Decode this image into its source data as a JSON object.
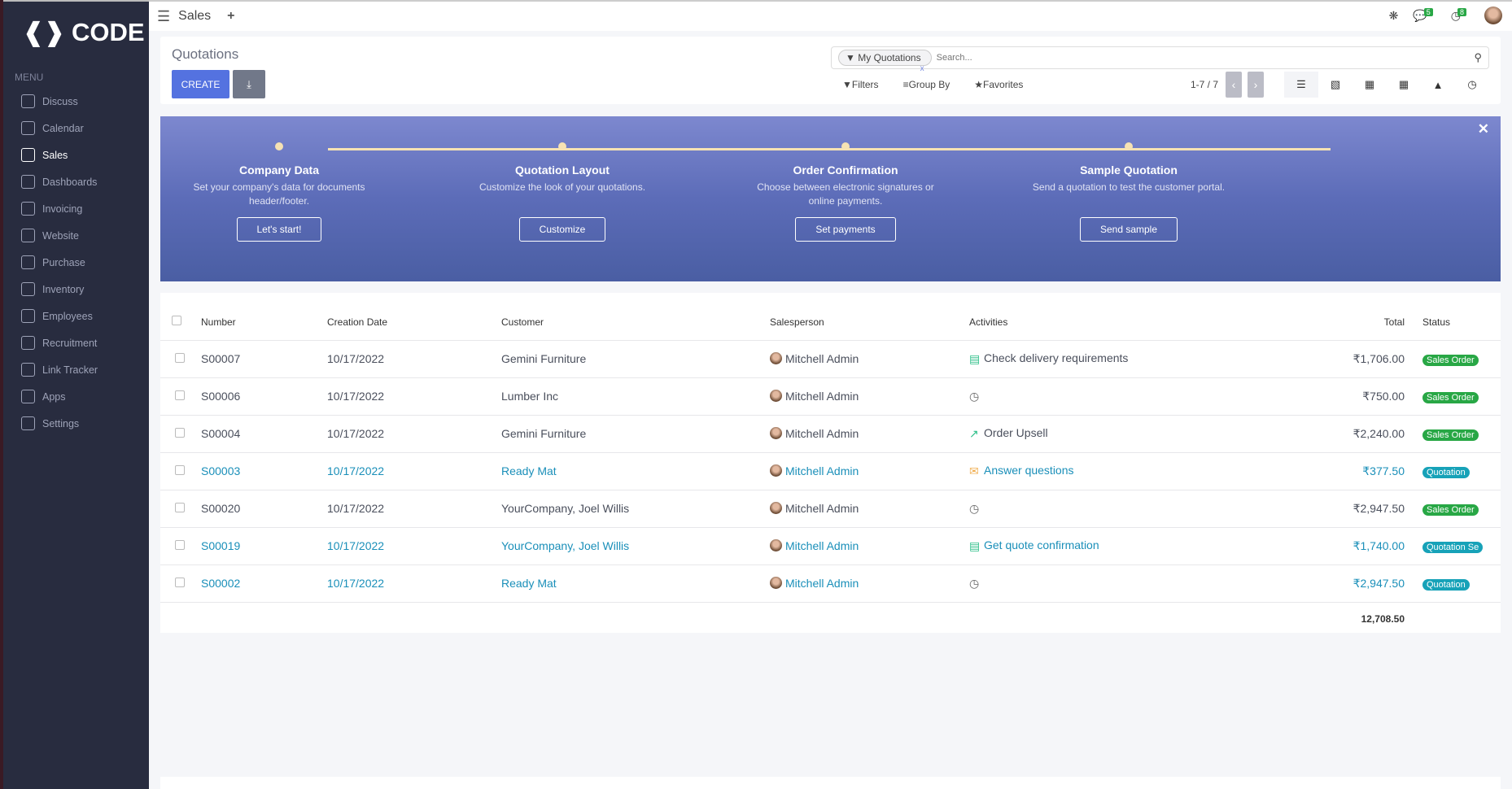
{
  "brand": {
    "logo_text": "CODE"
  },
  "sidebar": {
    "menu_label": "MENU",
    "items": [
      {
        "label": "Discuss",
        "icon": "chat-icon"
      },
      {
        "label": "Calendar",
        "icon": "app-icon"
      },
      {
        "label": "Sales",
        "icon": "chart-bars-icon",
        "active": true
      },
      {
        "label": "Dashboards",
        "icon": "gauge-icon"
      },
      {
        "label": "Invoicing",
        "icon": "invoice-icon"
      },
      {
        "label": "Website",
        "icon": "globe-icon"
      },
      {
        "label": "Purchase",
        "icon": "app-icon"
      },
      {
        "label": "Inventory",
        "icon": "box-icon"
      },
      {
        "label": "Employees",
        "icon": "app-icon"
      },
      {
        "label": "Recruitment",
        "icon": "app-icon"
      },
      {
        "label": "Link Tracker",
        "icon": "link-icon"
      },
      {
        "label": "Apps",
        "icon": "grid-icon"
      },
      {
        "label": "Settings",
        "icon": "gear-icon"
      }
    ]
  },
  "topbar": {
    "app_title": "Sales",
    "messages_count": "5",
    "activities_count": "8"
  },
  "control_panel": {
    "title": "Quotations",
    "create_label": "CREATE",
    "facet": "My Quotations",
    "search_placeholder": "Search...",
    "filters_label": "Filters",
    "group_by_label": "Group By",
    "favorites_label": "Favorites",
    "pager": "1-7 / 7"
  },
  "banner": {
    "steps": [
      {
        "title": "Company Data",
        "desc": "Set your company's data for documents header/footer.",
        "button": "Let's start!"
      },
      {
        "title": "Quotation Layout",
        "desc": "Customize the look of your quotations.",
        "button": "Customize"
      },
      {
        "title": "Order Confirmation",
        "desc": "Choose between electronic signatures or online payments.",
        "button": "Set payments"
      },
      {
        "title": "Sample Quotation",
        "desc": "Send a quotation to test the customer portal.",
        "button": "Send sample"
      }
    ]
  },
  "table": {
    "headers": {
      "number": "Number",
      "date": "Creation Date",
      "customer": "Customer",
      "salesperson": "Salesperson",
      "activities": "Activities",
      "total": "Total",
      "status": "Status"
    },
    "rows": [
      {
        "number": "S00007",
        "date": "10/17/2022",
        "customer": "Gemini Furniture",
        "salesperson": "Mitchell Admin",
        "activity": "Check delivery requirements",
        "activity_icon": "tasks-icon",
        "total": "₹1,706.00",
        "status": "Sales Order",
        "link": false
      },
      {
        "number": "S00006",
        "date": "10/17/2022",
        "customer": "Lumber Inc",
        "salesperson": "Mitchell Admin",
        "activity": "",
        "activity_icon": "clock-icon",
        "total": "₹750.00",
        "status": "Sales Order",
        "link": false
      },
      {
        "number": "S00004",
        "date": "10/17/2022",
        "customer": "Gemini Furniture",
        "salesperson": "Mitchell Admin",
        "activity": "Order Upsell",
        "activity_icon": "upsell-chart-icon",
        "total": "₹2,240.00",
        "status": "Sales Order",
        "link": false
      },
      {
        "number": "S00003",
        "date": "10/17/2022",
        "customer": "Ready Mat",
        "salesperson": "Mitchell Admin",
        "activity": "Answer questions",
        "activity_icon": "envelope-icon",
        "total": "₹377.50",
        "status": "Quotation",
        "link": true
      },
      {
        "number": "S00020",
        "date": "10/17/2022",
        "customer": "YourCompany, Joel Willis",
        "salesperson": "Mitchell Admin",
        "activity": "",
        "activity_icon": "clock-icon",
        "total": "₹2,947.50",
        "status": "Sales Order",
        "link": false
      },
      {
        "number": "S00019",
        "date": "10/17/2022",
        "customer": "YourCompany, Joel Willis",
        "salesperson": "Mitchell Admin",
        "activity": "Get quote confirmation",
        "activity_icon": "tasks-icon",
        "total": "₹1,740.00",
        "status": "Quotation Se",
        "link": true
      },
      {
        "number": "S00002",
        "date": "10/17/2022",
        "customer": "Ready Mat",
        "salesperson": "Mitchell Admin",
        "activity": "",
        "activity_icon": "clock-icon",
        "total": "₹2,947.50",
        "status": "Quotation",
        "link": true
      }
    ],
    "sum_total": "12,708.50"
  },
  "colors": {
    "sales_order": "#28a745",
    "quotation": "#17a2b8",
    "primary": "#5472e0",
    "sidebar": "#282c3f"
  }
}
